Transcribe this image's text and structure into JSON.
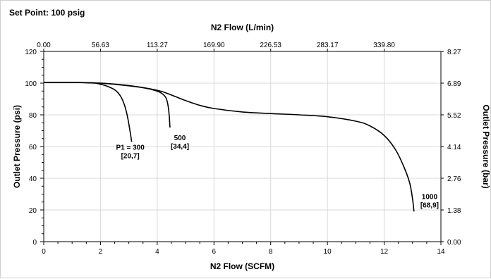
{
  "chart_data": {
    "type": "line",
    "title": "Set Point: 100 psig",
    "xlabel": "N2 Flow (SCFM)",
    "x2label": "N2 Flow (L/min)",
    "ylabel": "Outlet Pressure (psi)",
    "y2label": "Outlet Pressure (bar)",
    "xlim": [
      0,
      14
    ],
    "ylim": [
      0,
      120
    ],
    "x_ticks": [
      "0",
      "2",
      "4",
      "6",
      "8",
      "10",
      "12",
      "14"
    ],
    "x2_ticks": [
      "0.00",
      "56.63",
      "113.27",
      "169.90",
      "226.53",
      "283.17",
      "339.80"
    ],
    "y_ticks": [
      "0",
      "20",
      "40",
      "60",
      "80",
      "100",
      "120"
    ],
    "y2_ticks": [
      "0.00",
      "1.38",
      "2.76",
      "4.14",
      "5.52",
      "6.89",
      "8.27"
    ],
    "grid": true,
    "line_color": "#000000",
    "grid_color": "#d9d9d9",
    "series": [
      {
        "x": [
          0,
          0.5,
          1.0,
          1.5,
          1.8,
          2.0,
          2.2,
          2.5,
          2.7,
          2.85,
          2.95,
          3.03,
          3.1
        ],
        "y": [
          100.5,
          100.5,
          100.5,
          100.2,
          100,
          99.3,
          98.3,
          95.8,
          92,
          86,
          79,
          71,
          63
        ]
      },
      {
        "x": [
          0,
          1.0,
          2.0,
          2.8,
          3.4,
          3.8,
          4.1,
          4.3,
          4.38,
          4.42,
          4.45
        ],
        "y": [
          100.5,
          100.5,
          100,
          98.7,
          97.4,
          96,
          94.2,
          91,
          86,
          80,
          72
        ]
      },
      {
        "x": [
          0,
          1.0,
          2.0,
          3.0,
          4.0,
          4.5,
          5.0,
          5.5,
          6.0,
          7.0,
          8.0,
          9.0,
          10.0,
          11.0,
          11.5,
          12.0,
          12.4,
          12.7,
          12.9,
          13.0,
          13.05
        ],
        "y": [
          100.5,
          100.5,
          100,
          98.5,
          95.5,
          92.5,
          89,
          86,
          84,
          81.8,
          80.8,
          80,
          78.8,
          76,
          73,
          67,
          58,
          47,
          37,
          27,
          19
        ]
      }
    ],
    "annotations": [
      {
        "lines": [
          "P1 = 300",
          "[20,7]"
        ],
        "x": 3.05,
        "y": 58
      },
      {
        "lines": [
          "500",
          "[34,4]"
        ],
        "x": 4.8,
        "y": 64
      },
      {
        "lines": [
          "1000",
          "[68,9]"
        ],
        "x": 13.6,
        "y": 27
      }
    ]
  }
}
